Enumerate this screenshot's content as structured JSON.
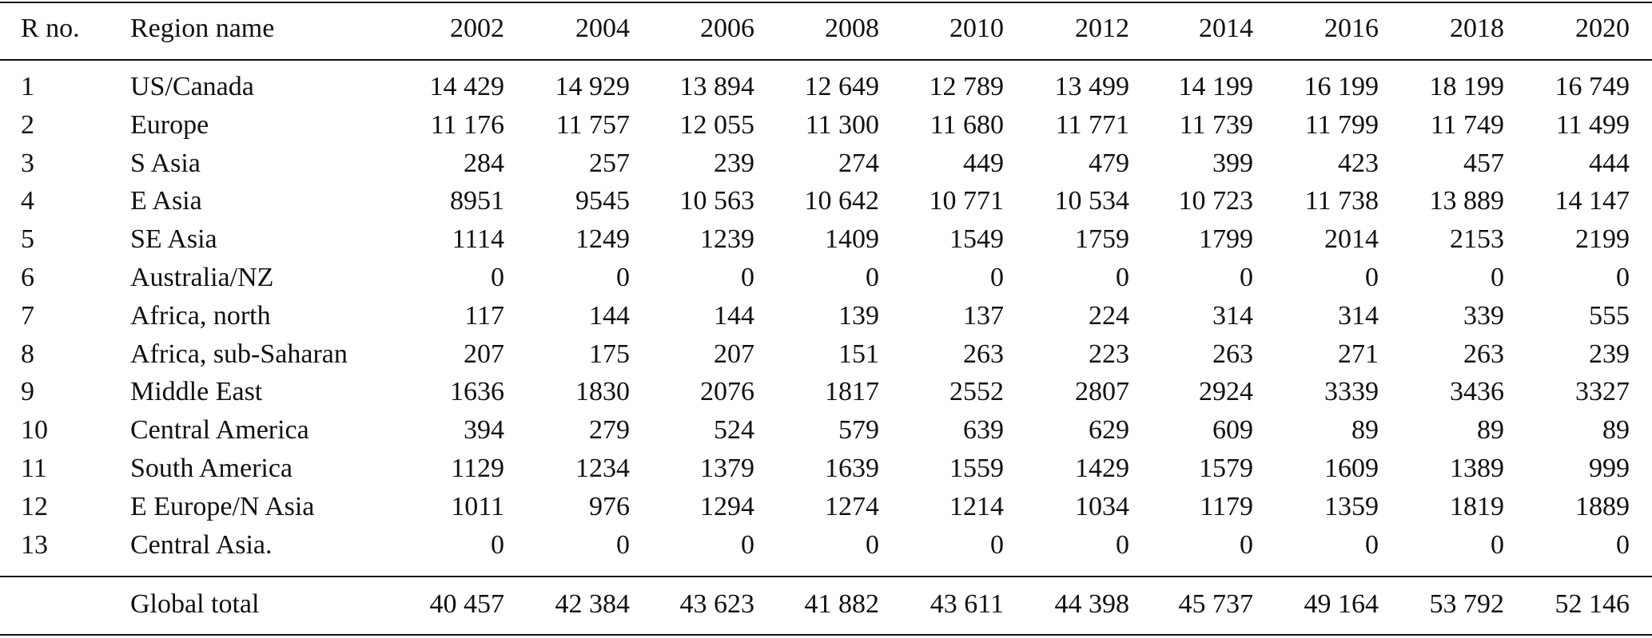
{
  "table": {
    "header": [
      "R no.",
      "Region name",
      "2002",
      "2004",
      "2006",
      "2008",
      "2010",
      "2012",
      "2014",
      "2016",
      "2018",
      "2020"
    ],
    "rows": [
      [
        "1",
        "US/Canada",
        "14 429",
        "14 929",
        "13 894",
        "12 649",
        "12 789",
        "13 499",
        "14 199",
        "16 199",
        "18 199",
        "16 749"
      ],
      [
        "2",
        "Europe",
        "11 176",
        "11 757",
        "12 055",
        "11 300",
        "11 680",
        "11 771",
        "11 739",
        "11 799",
        "11 749",
        "11 499"
      ],
      [
        "3",
        "S Asia",
        "284",
        "257",
        "239",
        "274",
        "449",
        "479",
        "399",
        "423",
        "457",
        "444"
      ],
      [
        "4",
        "E Asia",
        "8951",
        "9545",
        "10 563",
        "10 642",
        "10 771",
        "10 534",
        "10 723",
        "11 738",
        "13 889",
        "14 147"
      ],
      [
        "5",
        "SE Asia",
        "1114",
        "1249",
        "1239",
        "1409",
        "1549",
        "1759",
        "1799",
        "2014",
        "2153",
        "2199"
      ],
      [
        "6",
        "Australia/NZ",
        "0",
        "0",
        "0",
        "0",
        "0",
        "0",
        "0",
        "0",
        "0",
        "0"
      ],
      [
        "7",
        "Africa, north",
        "117",
        "144",
        "144",
        "139",
        "137",
        "224",
        "314",
        "314",
        "339",
        "555"
      ],
      [
        "8",
        "Africa, sub-Saharan",
        "207",
        "175",
        "207",
        "151",
        "263",
        "223",
        "263",
        "271",
        "263",
        "239"
      ],
      [
        "9",
        "Middle East",
        "1636",
        "1830",
        "2076",
        "1817",
        "2552",
        "2807",
        "2924",
        "3339",
        "3436",
        "3327"
      ],
      [
        "10",
        "Central America",
        "394",
        "279",
        "524",
        "579",
        "639",
        "629",
        "609",
        "89",
        "89",
        "89"
      ],
      [
        "11",
        "South America",
        "1129",
        "1234",
        "1379",
        "1639",
        "1559",
        "1429",
        "1579",
        "1609",
        "1389",
        "999"
      ],
      [
        "12",
        "E Europe/N Asia",
        "1011",
        "976",
        "1294",
        "1274",
        "1214",
        "1034",
        "1179",
        "1359",
        "1819",
        "1889"
      ],
      [
        "13",
        "Central Asia.",
        "0",
        "0",
        "0",
        "0",
        "0",
        "0",
        "0",
        "0",
        "0",
        "0"
      ]
    ],
    "footer": {
      "label": "Global total",
      "values": [
        "40 457",
        "42 384",
        "43 623",
        "41 882",
        "43 611",
        "44 398",
        "45 737",
        "49 164",
        "53 792",
        "52 146"
      ]
    }
  }
}
